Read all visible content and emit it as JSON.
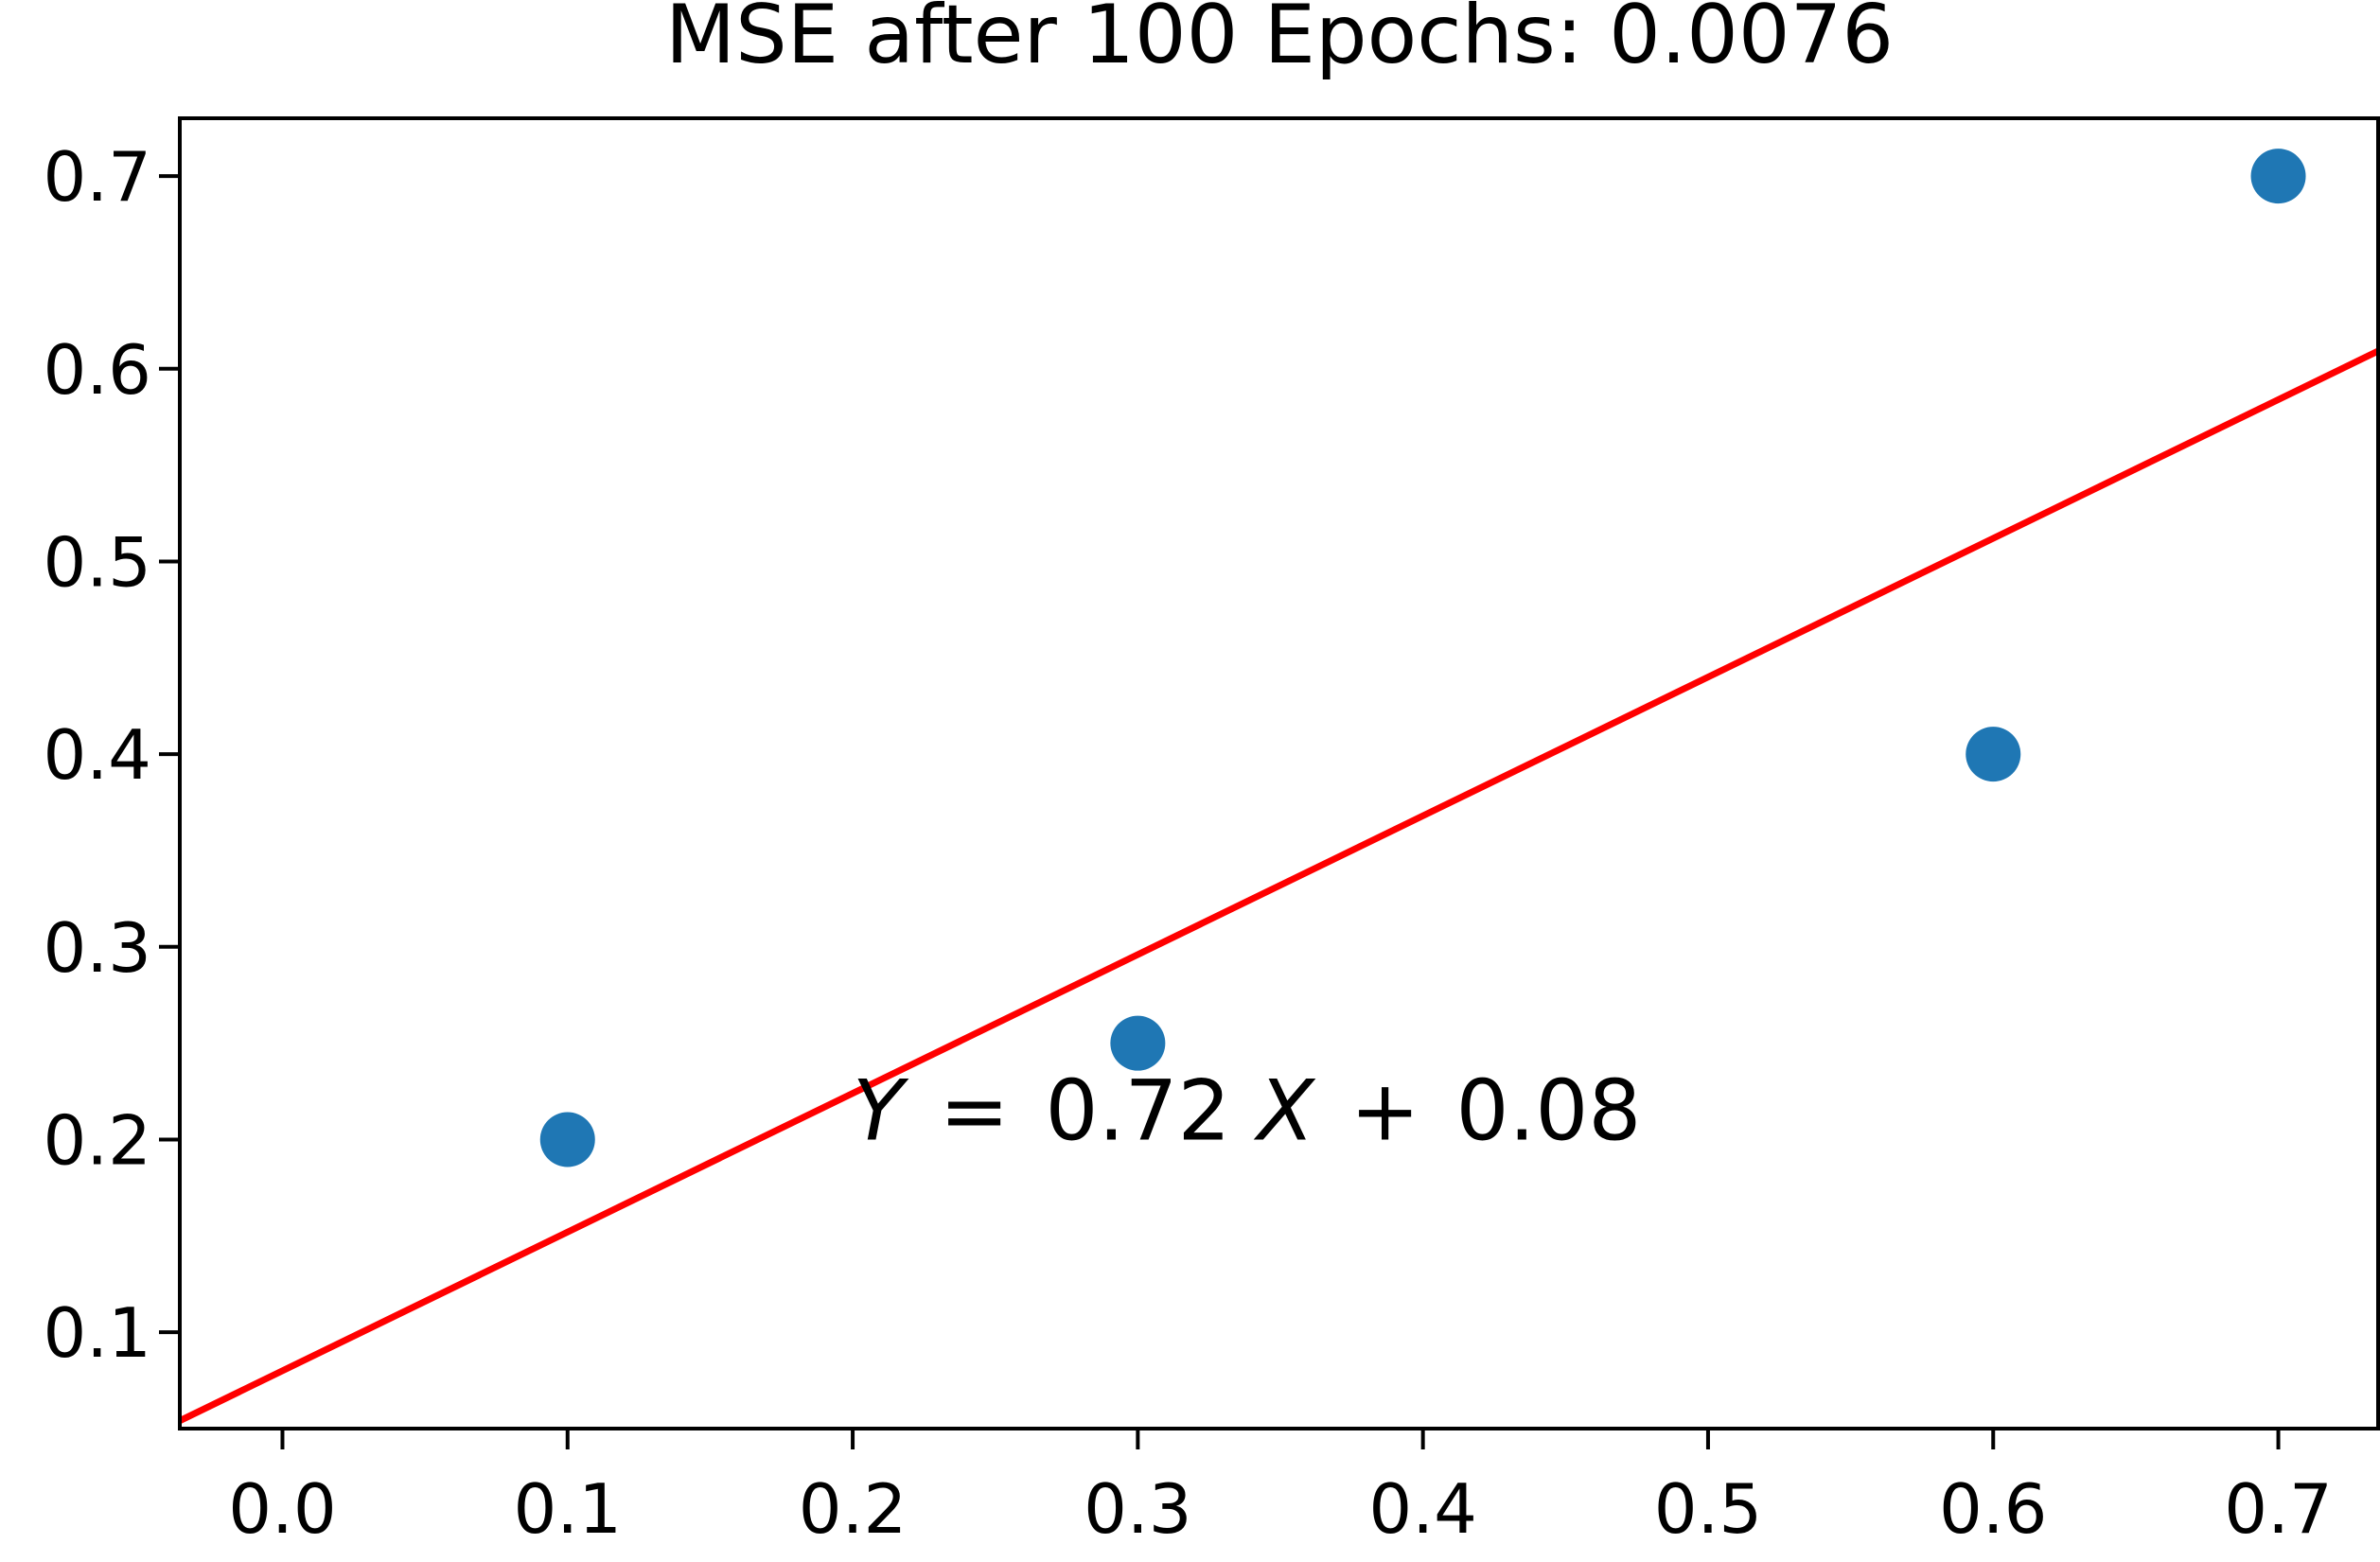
{
  "chart_data": {
    "type": "scatter",
    "title": "MSE after 100 Epochs: 0.0076",
    "xlabel": "",
    "ylabel": "",
    "xlim": [
      -0.036,
      0.735
    ],
    "ylim": [
      0.05,
      0.73
    ],
    "x_ticks": [
      0.0,
      0.1,
      0.2,
      0.3,
      0.4,
      0.5,
      0.6,
      0.7
    ],
    "x_tick_labels": [
      "0.0",
      "0.1",
      "0.2",
      "0.3",
      "0.4",
      "0.5",
      "0.6",
      "0.7"
    ],
    "y_ticks": [
      0.1,
      0.2,
      0.3,
      0.4,
      0.5,
      0.6,
      0.7
    ],
    "y_tick_labels": [
      "0.1",
      "0.2",
      "0.3",
      "0.4",
      "0.5",
      "0.6",
      "0.7"
    ],
    "grid": false,
    "points": [
      {
        "x": 0.1,
        "y": 0.2
      },
      {
        "x": 0.3,
        "y": 0.25
      },
      {
        "x": 0.6,
        "y": 0.4
      },
      {
        "x": 0.7,
        "y": 0.7
      }
    ],
    "fit_line": {
      "slope": 0.72,
      "intercept": 0.08
    },
    "annotation": {
      "y_var": "Y",
      "eq": "=",
      "coef": "0.72",
      "x_var": "X",
      "plus": "+",
      "intercept": "0.08",
      "x": 0.2,
      "y": 0.2
    },
    "colors": {
      "points": "#1f77b4",
      "fit_line": "#ff0000",
      "axes": "#000000"
    }
  }
}
